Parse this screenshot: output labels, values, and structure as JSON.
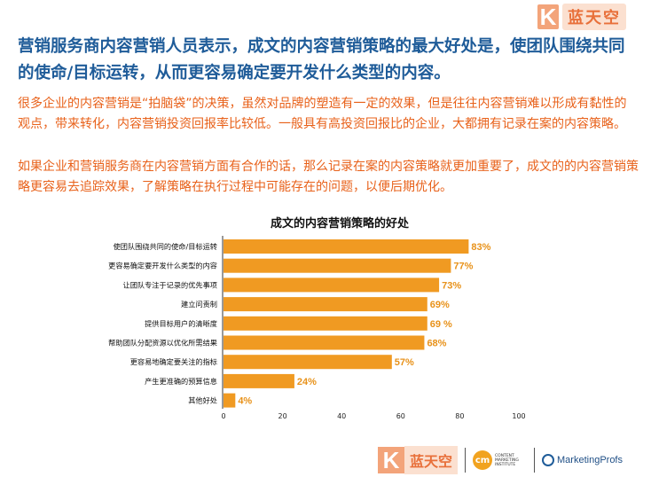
{
  "brand": {
    "logo_letter": "K",
    "name": "蓝天空"
  },
  "headline": "营销服务商内容营销人员表示，成文的内容营销策略的最大好处是，使团队围绕共同的使命/目标运转，从而更容易确定要开发什么类型的内容。",
  "paragraphs": [
    "很多企业的内容营销是“拍脑袋”的决策，虽然对品牌的塑造有一定的效果，但是往往内容营销难以形成有黏性的观点，带来转化，内容营销投资回报率比较低。一般具有高投资回报比的企业，大都拥有记录在案的内容策略。",
    "如果企业和营销服务商在内容营销方面有合作的话，那么记录在案的内容策略就更加重要了，成文的的内容营销策略更容易去追踪效果，了解策略在执行过程中可能存在的问题，以便后期优化。"
  ],
  "chart_data": {
    "type": "bar",
    "orientation": "horizontal",
    "title": "成文的内容营销策略的好处",
    "categories": [
      "使团队围绕共同的使命/目标运转",
      "更容易确定要开发什么类型的内容",
      "让团队专注于记录的优先事项",
      "建立问责制",
      "提供目标用户的清晰度",
      "帮助团队分配资源以优化所需结果",
      "更容易地确定要关注的指标",
      "产生更准确的预算信息",
      "其他好处"
    ],
    "values": [
      83,
      77,
      73,
      69,
      69,
      68,
      57,
      24,
      4
    ],
    "value_labels": [
      "83%",
      "77%",
      "73%",
      "69%",
      "69 %",
      "68%",
      "57%",
      "24%",
      "4%"
    ],
    "xlim": [
      0,
      100
    ],
    "xticks": [
      "0",
      "20",
      "40",
      "60",
      "80",
      "100"
    ],
    "grid": false,
    "bar_color": "#f09a22",
    "value_label_color": "#e8921a"
  },
  "footer": {
    "brand_letter": "K",
    "brand_name": "蓝天空",
    "cmi_mark": "cm",
    "cmi_text": "CONTENT MARKETING INSTITUTE",
    "mp_text": "MarketingProfs"
  }
}
